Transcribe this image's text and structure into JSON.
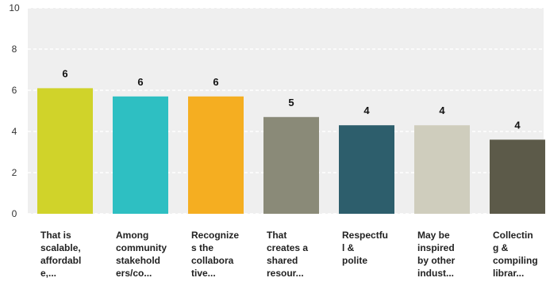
{
  "chart_data": {
    "type": "bar",
    "categories": [
      "That is scalable, affordabl e,...",
      "Among community stakehold ers/co...",
      "Recognize s the collabora tive...",
      "That creates a shared resour...",
      "Respectfu l & polite",
      "May be inspired by other indust...",
      "Collectin g & compiling librar..."
    ],
    "category_lines": [
      [
        "That is",
        "scalable,",
        "affordabl",
        "e,..."
      ],
      [
        "Among",
        "community",
        "stakehold",
        "ers/co..."
      ],
      [
        "Recognize",
        "s the",
        "collabora",
        "tive..."
      ],
      [
        "That",
        "creates a",
        "shared",
        "resour..."
      ],
      [
        "Respectfu",
        "l &",
        "polite"
      ],
      [
        "May be",
        "inspired",
        "by other",
        "indust..."
      ],
      [
        "Collectin",
        "g &",
        "compiling",
        "librar..."
      ]
    ],
    "values": [
      6.1,
      5.7,
      5.7,
      4.7,
      4.3,
      4.3,
      3.6
    ],
    "data_labels": [
      "6",
      "6",
      "6",
      "5",
      "4",
      "4",
      "4"
    ],
    "colors": [
      "#d0d32a",
      "#2ebfc2",
      "#f5ae21",
      "#8a8a78",
      "#2d5e6c",
      "#cfcdbd",
      "#5c5a49"
    ],
    "ylim": [
      0,
      10
    ],
    "yticks": [
      "0",
      "2",
      "4",
      "6",
      "8",
      "10"
    ],
    "grid": true,
    "plot_background": "#efefef",
    "title": "",
    "xlabel": "",
    "ylabel": ""
  }
}
